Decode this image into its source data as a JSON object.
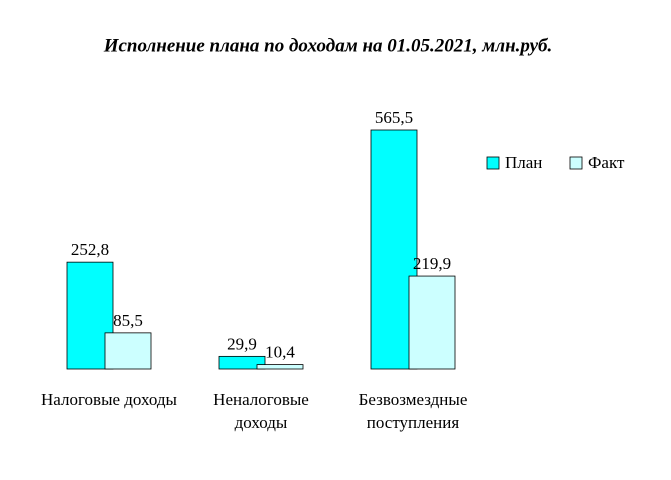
{
  "chart_data": {
    "type": "bar",
    "title": "Исполнение плана по доходам на 01.05.2021, млн.руб.",
    "categories": [
      "Налоговые доходы",
      "Неналоговые доходы",
      "Безвозмездные поступления"
    ],
    "series": [
      {
        "name": "План",
        "color": "#00ffff",
        "values": [
          252.8,
          29.9,
          565.5
        ],
        "value_labels": [
          "252,8",
          "29,9",
          "565,5"
        ]
      },
      {
        "name": "Факт",
        "color": "#ccffff",
        "values": [
          85.5,
          10.4,
          219.9
        ],
        "value_labels": [
          "85,5",
          "10,4",
          "219,9"
        ]
      }
    ],
    "legend": "right"
  }
}
